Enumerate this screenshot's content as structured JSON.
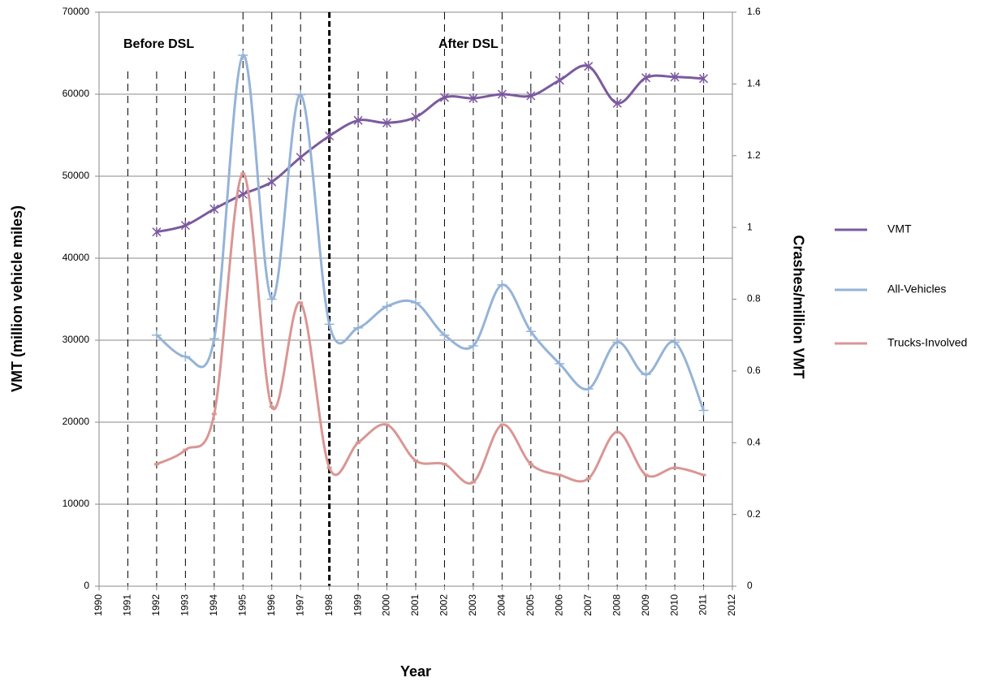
{
  "chart_data": {
    "type": "line",
    "xlabel": "Year",
    "ylabel": "VMT (million vehicle miles)",
    "y2label": "Crashes/million VMT",
    "annotations": [
      "Before DSL",
      "After DSL"
    ],
    "x": [
      1992,
      1993,
      1994,
      1995,
      1996,
      1997,
      1998,
      1999,
      2000,
      2001,
      2002,
      2003,
      2004,
      2005,
      2006,
      2007,
      2008,
      2009,
      2010,
      2011
    ],
    "xlim": [
      1990,
      2012
    ],
    "xticks": [
      1990,
      1991,
      1992,
      1993,
      1994,
      1995,
      1996,
      1997,
      1998,
      1999,
      2000,
      2001,
      2002,
      2003,
      2004,
      2005,
      2006,
      2007,
      2008,
      2009,
      2010,
      2011,
      2012
    ],
    "ylim": [
      0,
      70000
    ],
    "yticks": [
      0,
      10000,
      20000,
      30000,
      40000,
      50000,
      60000,
      70000
    ],
    "y2lim": [
      0,
      1.6
    ],
    "y2ticks": [
      0,
      0.2,
      0.4,
      0.6,
      0.8,
      1,
      1.2,
      1.4,
      1.6
    ],
    "grid": true,
    "legend": "right",
    "series": [
      {
        "name": "VMT",
        "color": "#7b5a9e",
        "marker": "star",
        "values": [
          43200,
          44000,
          46000,
          47800,
          49300,
          52300,
          54900,
          56800,
          56500,
          57200,
          59600,
          59500,
          60000,
          59800,
          61700,
          63400,
          58900,
          62000,
          62100,
          61900
        ]
      },
      {
        "name": "All-Vehicles",
        "color": "#95b3d7",
        "marker": "plus",
        "axis": "y2",
        "values": [
          0.7,
          0.64,
          0.69,
          1.48,
          0.8,
          1.37,
          0.73,
          0.72,
          0.78,
          0.79,
          0.7,
          0.67,
          0.84,
          0.71,
          0.62,
          0.55,
          0.68,
          0.59,
          0.68,
          0.49
        ]
      },
      {
        "name": "Trucks-Involved",
        "color": "#d99694",
        "marker": "dash",
        "axis": "y2",
        "values": [
          0.34,
          0.38,
          0.48,
          1.15,
          0.5,
          0.79,
          0.33,
          0.4,
          0.45,
          0.35,
          0.34,
          0.29,
          0.45,
          0.34,
          0.31,
          0.3,
          0.43,
          0.31,
          0.33,
          0.31
        ]
      }
    ]
  }
}
